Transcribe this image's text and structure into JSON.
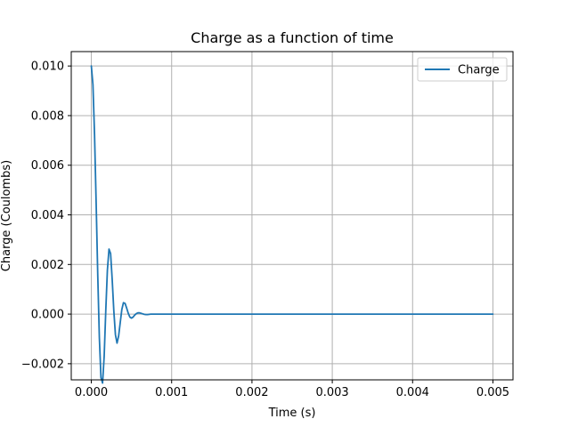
{
  "chart_data": {
    "type": "line",
    "title": "Charge as a function of time",
    "xlabel": "Time (s)",
    "ylabel": "Charge (Coulombs)",
    "xlim": [
      -0.00025,
      0.00525
    ],
    "ylim": [
      -0.00265,
      0.01058
    ],
    "grid": true,
    "legend_position": "top-right",
    "xticks": [
      0.0,
      0.001,
      0.002,
      0.003,
      0.004,
      0.005
    ],
    "xtick_labels": [
      "0.000",
      "0.001",
      "0.002",
      "0.003",
      "0.004",
      "0.005"
    ],
    "yticks": [
      -0.002,
      0.0,
      0.002,
      0.004,
      0.006,
      0.008,
      0.01
    ],
    "ytick_labels": [
      "−0.002",
      "0.000",
      "0.002",
      "0.004",
      "0.006",
      "0.008",
      "0.010"
    ],
    "series": [
      {
        "name": "Charge",
        "color": "#1f77b4",
        "x": [
          0.0,
          2e-05,
          4e-05,
          6e-05,
          8e-05,
          0.0001,
          0.00012,
          0.00014,
          0.00016,
          0.00018,
          0.0002,
          0.00022,
          0.00024,
          0.00026,
          0.00028,
          0.0003,
          0.00032,
          0.00034,
          0.00036,
          0.00038,
          0.0004,
          0.00042,
          0.00044,
          0.00046,
          0.00048,
          0.0005,
          0.00052,
          0.00054,
          0.00056,
          0.00058,
          0.0006,
          0.00062,
          0.00064,
          0.00066,
          0.00068,
          0.0007,
          0.00072,
          0.00074,
          0.00076,
          0.00078,
          0.0008,
          0.00085,
          0.0009,
          0.001,
          0.0015,
          0.002,
          0.0025,
          0.003,
          0.0035,
          0.004,
          0.0045,
          0.005
        ],
        "y": [
          0.01,
          0.00925,
          0.00724,
          0.00448,
          0.00157,
          -0.00095,
          -0.00256,
          -0.00278,
          -0.0017,
          0.00015,
          0.00177,
          0.00262,
          0.00244,
          0.00138,
          0.00013,
          -0.00083,
          -0.00117,
          -0.00088,
          -0.00034,
          0.00019,
          0.00046,
          0.00043,
          0.00024,
          3e-05,
          -0.00012,
          -0.00016,
          -0.00012,
          -4e-05,
          2e-05,
          5e-05,
          5e-05,
          3e-05,
          1e-05,
          -1e-05,
          -2e-05,
          -2e-05,
          -1e-05,
          0.0,
          0.0,
          0.0,
          0.0,
          0.0,
          0.0,
          0.0,
          0.0,
          0.0,
          0.0,
          0.0,
          0.0,
          0.0,
          0.0,
          0.0
        ]
      }
    ]
  }
}
